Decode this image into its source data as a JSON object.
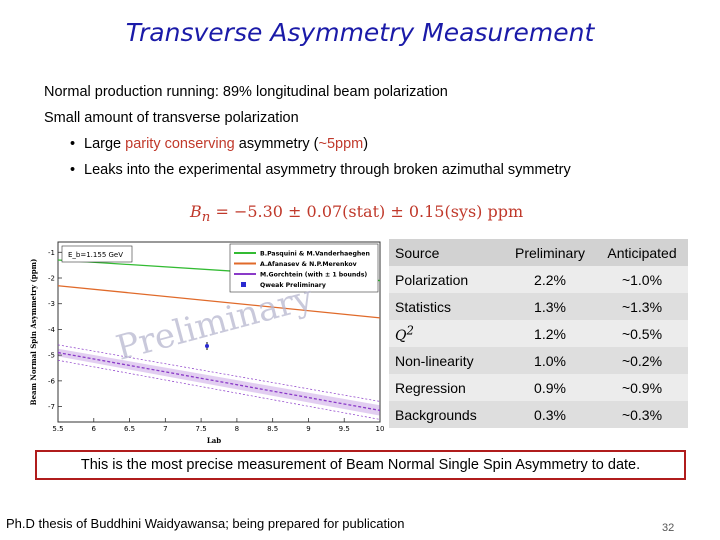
{
  "slide": {
    "title": "Transverse Asymmetry Measurement",
    "line1": "Normal production running: 89% longitudinal beam polarization",
    "line2": "Small amount of transverse polarization",
    "bullet1_a": "Large ",
    "bullet1_red": "parity conserving",
    "bullet1_b": " asymmetry (",
    "bullet1_red2": "~5ppm",
    "bullet1_c": ")",
    "bullet2": "Leaks into the experimental asymmetry through broken azimuthal symmetry",
    "bullet_glyph": "•",
    "formula": {
      "symbol": "B",
      "subscript": "n",
      "rest": " = −5.30 ± 0.07(stat) ± 0.15(sys) ppm"
    },
    "banner": "This is the most precise measurement of Beam Normal Single Spin Asymmetry to date.",
    "footer": "Ph.D thesis of  Buddhini Waidyawansa; being prepared for publication",
    "page_number": "32"
  },
  "plot": {
    "ylabel": "Beam Normal Spin Asymmetry (ppm)",
    "xlabel": "Lab",
    "energy_label": "E_b=1.155 GeV",
    "watermark": "Preliminary",
    "x_ticks": [
      "5.5",
      "6",
      "6.5",
      "7",
      "7.5",
      "8",
      "8.5",
      "9",
      "9.5",
      "10"
    ],
    "y_ticks": [
      "-1",
      "-2",
      "-3",
      "-4",
      "-5",
      "-6",
      "-7"
    ],
    "legend": [
      {
        "label": "B.Pasquini & M.Vanderhaeghen",
        "color": "#33bb33"
      },
      {
        "label": "A.Afanasev & N.P.Merenkov",
        "color": "#e06a2a"
      },
      {
        "label": "M.Gorchtein (with ± 1  bounds)",
        "color": "#8a3ac8"
      },
      {
        "label": "Qweak Preliminary",
        "color": "#2a2ad0"
      }
    ]
  },
  "table": {
    "headers": [
      "Source",
      "Preliminary",
      "Anticipated"
    ],
    "rows": [
      [
        "Polarization",
        "2.2%",
        "~1.0%"
      ],
      [
        "Statistics",
        "1.3%",
        "~1.3%"
      ],
      [
        "Q2",
        "1.2%",
        "~0.5%"
      ],
      [
        "Non-linearity",
        "1.0%",
        "~0.2%"
      ],
      [
        "Regression",
        "0.9%",
        "~0.9%"
      ],
      [
        "Backgrounds",
        "0.3%",
        "~0.3%"
      ]
    ]
  }
}
